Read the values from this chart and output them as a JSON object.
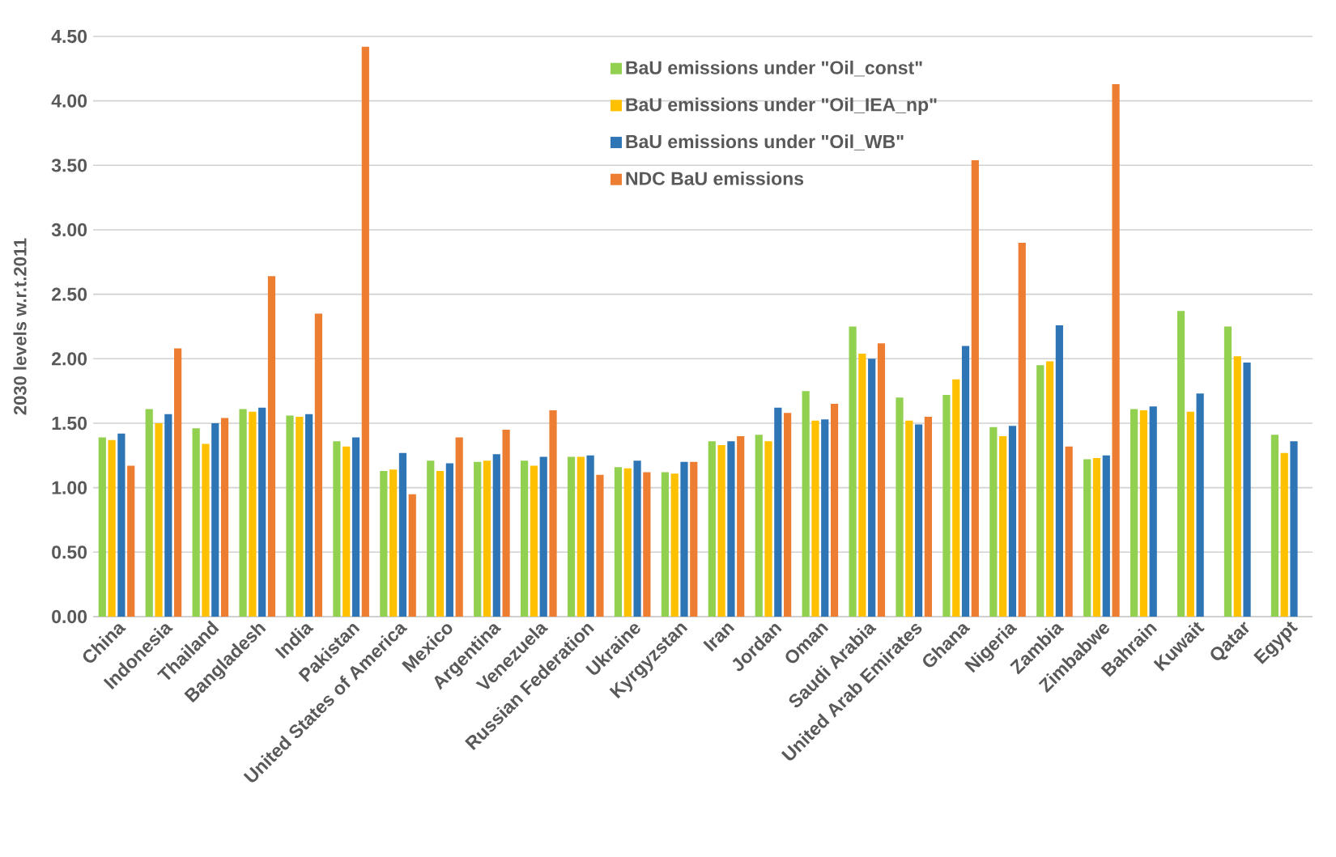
{
  "chart_data": {
    "type": "bar",
    "ylabel": "2030 levels w.r.t.2011",
    "categories": [
      "China",
      "Indonesia",
      "Thailand",
      "Bangladesh",
      "India",
      "Pakistan",
      "United States of America",
      "Mexico",
      "Argentina",
      "Venezuela",
      "Russian Federation",
      "Ukraine",
      "Kyrgyzstan",
      "Iran",
      "Jordan",
      "Oman",
      "Saudi Arabia",
      "United Arab Emirates",
      "Ghana",
      "Nigeria",
      "Zambia",
      "Zimbabwe",
      "Bahrain",
      "Kuwait",
      "Qatar",
      "Egypt"
    ],
    "series": [
      {
        "name": "BaU emissions under \"Oil_const\"",
        "color": "#92d050",
        "values": [
          1.39,
          1.61,
          1.46,
          1.61,
          1.56,
          1.36,
          1.13,
          1.21,
          1.2,
          1.21,
          1.24,
          1.16,
          1.12,
          1.36,
          1.41,
          1.75,
          2.25,
          1.7,
          1.72,
          1.47,
          1.95,
          1.22,
          1.61,
          2.37,
          2.25,
          1.41
        ]
      },
      {
        "name": "BaU emissions under \"Oil_IEA_np\"",
        "color": "#ffc000",
        "values": [
          1.37,
          1.5,
          1.34,
          1.59,
          1.55,
          1.32,
          1.14,
          1.13,
          1.21,
          1.17,
          1.24,
          1.15,
          1.11,
          1.33,
          1.36,
          1.52,
          2.04,
          1.52,
          1.84,
          1.4,
          1.98,
          1.23,
          1.6,
          1.59,
          2.02,
          1.27
        ]
      },
      {
        "name": "BaU emissions under \"Oil_WB\"",
        "color": "#2e75b6",
        "values": [
          1.42,
          1.57,
          1.5,
          1.62,
          1.57,
          1.39,
          1.27,
          1.19,
          1.26,
          1.24,
          1.25,
          1.21,
          1.2,
          1.36,
          1.62,
          1.53,
          2.0,
          1.49,
          2.1,
          1.48,
          2.26,
          1.25,
          1.63,
          1.73,
          1.97,
          1.36
        ]
      },
      {
        "name": "NDC BaU emissions",
        "color": "#ed7d31",
        "values": [
          1.17,
          2.08,
          1.54,
          2.64,
          2.35,
          4.42,
          0.95,
          1.39,
          1.45,
          1.6,
          1.1,
          1.12,
          1.2,
          1.4,
          1.58,
          1.65,
          2.12,
          1.55,
          3.54,
          2.9,
          1.32,
          4.13,
          null,
          null,
          null,
          null
        ]
      }
    ],
    "ylim": [
      0,
      4.5
    ],
    "yticks": [
      {
        "value": 0,
        "label": "0.00"
      },
      {
        "value": 0.5,
        "label": "0.50"
      },
      {
        "value": 1,
        "label": "1.00"
      },
      {
        "value": 1.5,
        "label": "1.50"
      },
      {
        "value": 2,
        "label": "2.00"
      },
      {
        "value": 2.5,
        "label": "2.50"
      },
      {
        "value": 3,
        "label": "3.00"
      },
      {
        "value": 3.5,
        "label": "3.50"
      },
      {
        "value": 4,
        "label": "4.00"
      },
      {
        "value": 4.5,
        "label": "4.50"
      }
    ],
    "grid": "y",
    "legend": "top"
  }
}
